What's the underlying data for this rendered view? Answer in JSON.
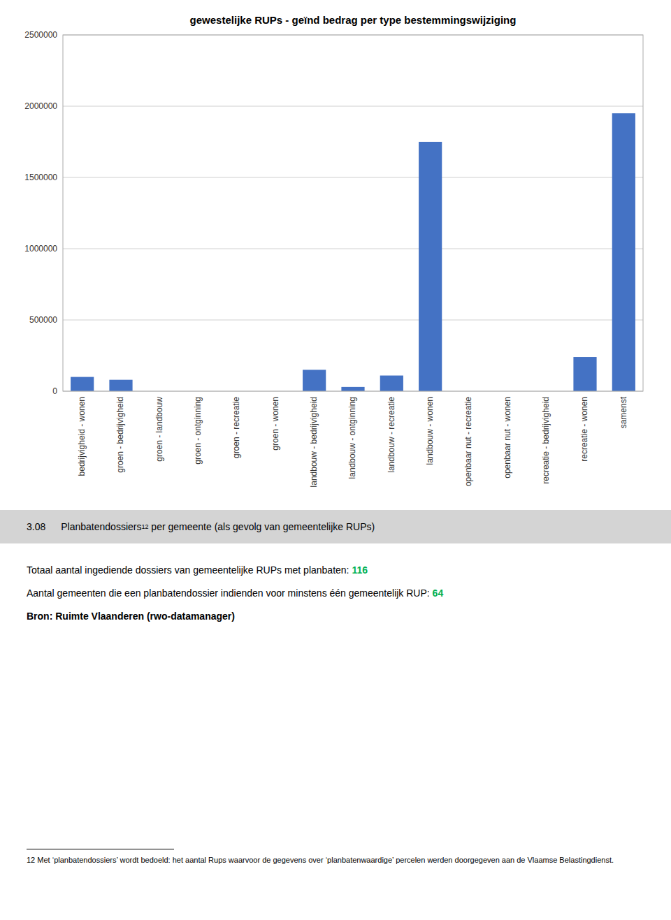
{
  "chart_data": {
    "type": "bar",
    "title": "gewestelijke RUPs - geïnd bedrag per type bestemmingswijziging",
    "categories": [
      "bedrijvigheid - wonen",
      "groen - bedrijvigheid",
      "groen - landbouw",
      "groen - ontginning",
      "groen - recreatie",
      "groen - wonen",
      "landbouw - bedrijvigheid",
      "landbouw - ontginning",
      "landbouw - recreatie",
      "landbouw - wonen",
      "openbaar nut - recreatie",
      "openbaar nut - wonen",
      "recreatie - bedrijvigheid",
      "recreatie - wonen",
      "samenst"
    ],
    "values": [
      100000,
      80000,
      0,
      0,
      0,
      0,
      150000,
      30000,
      110000,
      1750000,
      0,
      0,
      0,
      240000,
      1950000
    ],
    "color": "#4472C4",
    "ylim": [
      0,
      2500000
    ],
    "yticks": [
      0,
      500000,
      1000000,
      1500000,
      2000000,
      2500000
    ],
    "grid": true
  },
  "page_text": {
    "section_number": "3.08",
    "section_title": "Planbatendossiers",
    "section_footnote_ref": "12",
    "section_title_rest": " per gemeente (als gevolg van gemeentelijke RUPs)",
    "lines": [
      {
        "label": "Totaal aantal ingediende dossiers van gemeentelijke RUPs met planbaten: ",
        "value": 116
      },
      {
        "label": "Aantal gemeenten die een planbatendossier indienden voor minstens één gemeentelijk RUP: ",
        "value": 64
      }
    ],
    "highlight_color": "#00b050",
    "source": "Bron: Ruimte Vlaanderen (rwo-datamanager)",
    "footnote_number": "12",
    "footnote_text": " Met ‘planbatendossiers’ wordt bedoeld: het aantal Rups waarvoor de gegevens over ‘planbatenwaardige’ percelen werden doorgegeven aan de Vlaamse Belastingdienst."
  }
}
